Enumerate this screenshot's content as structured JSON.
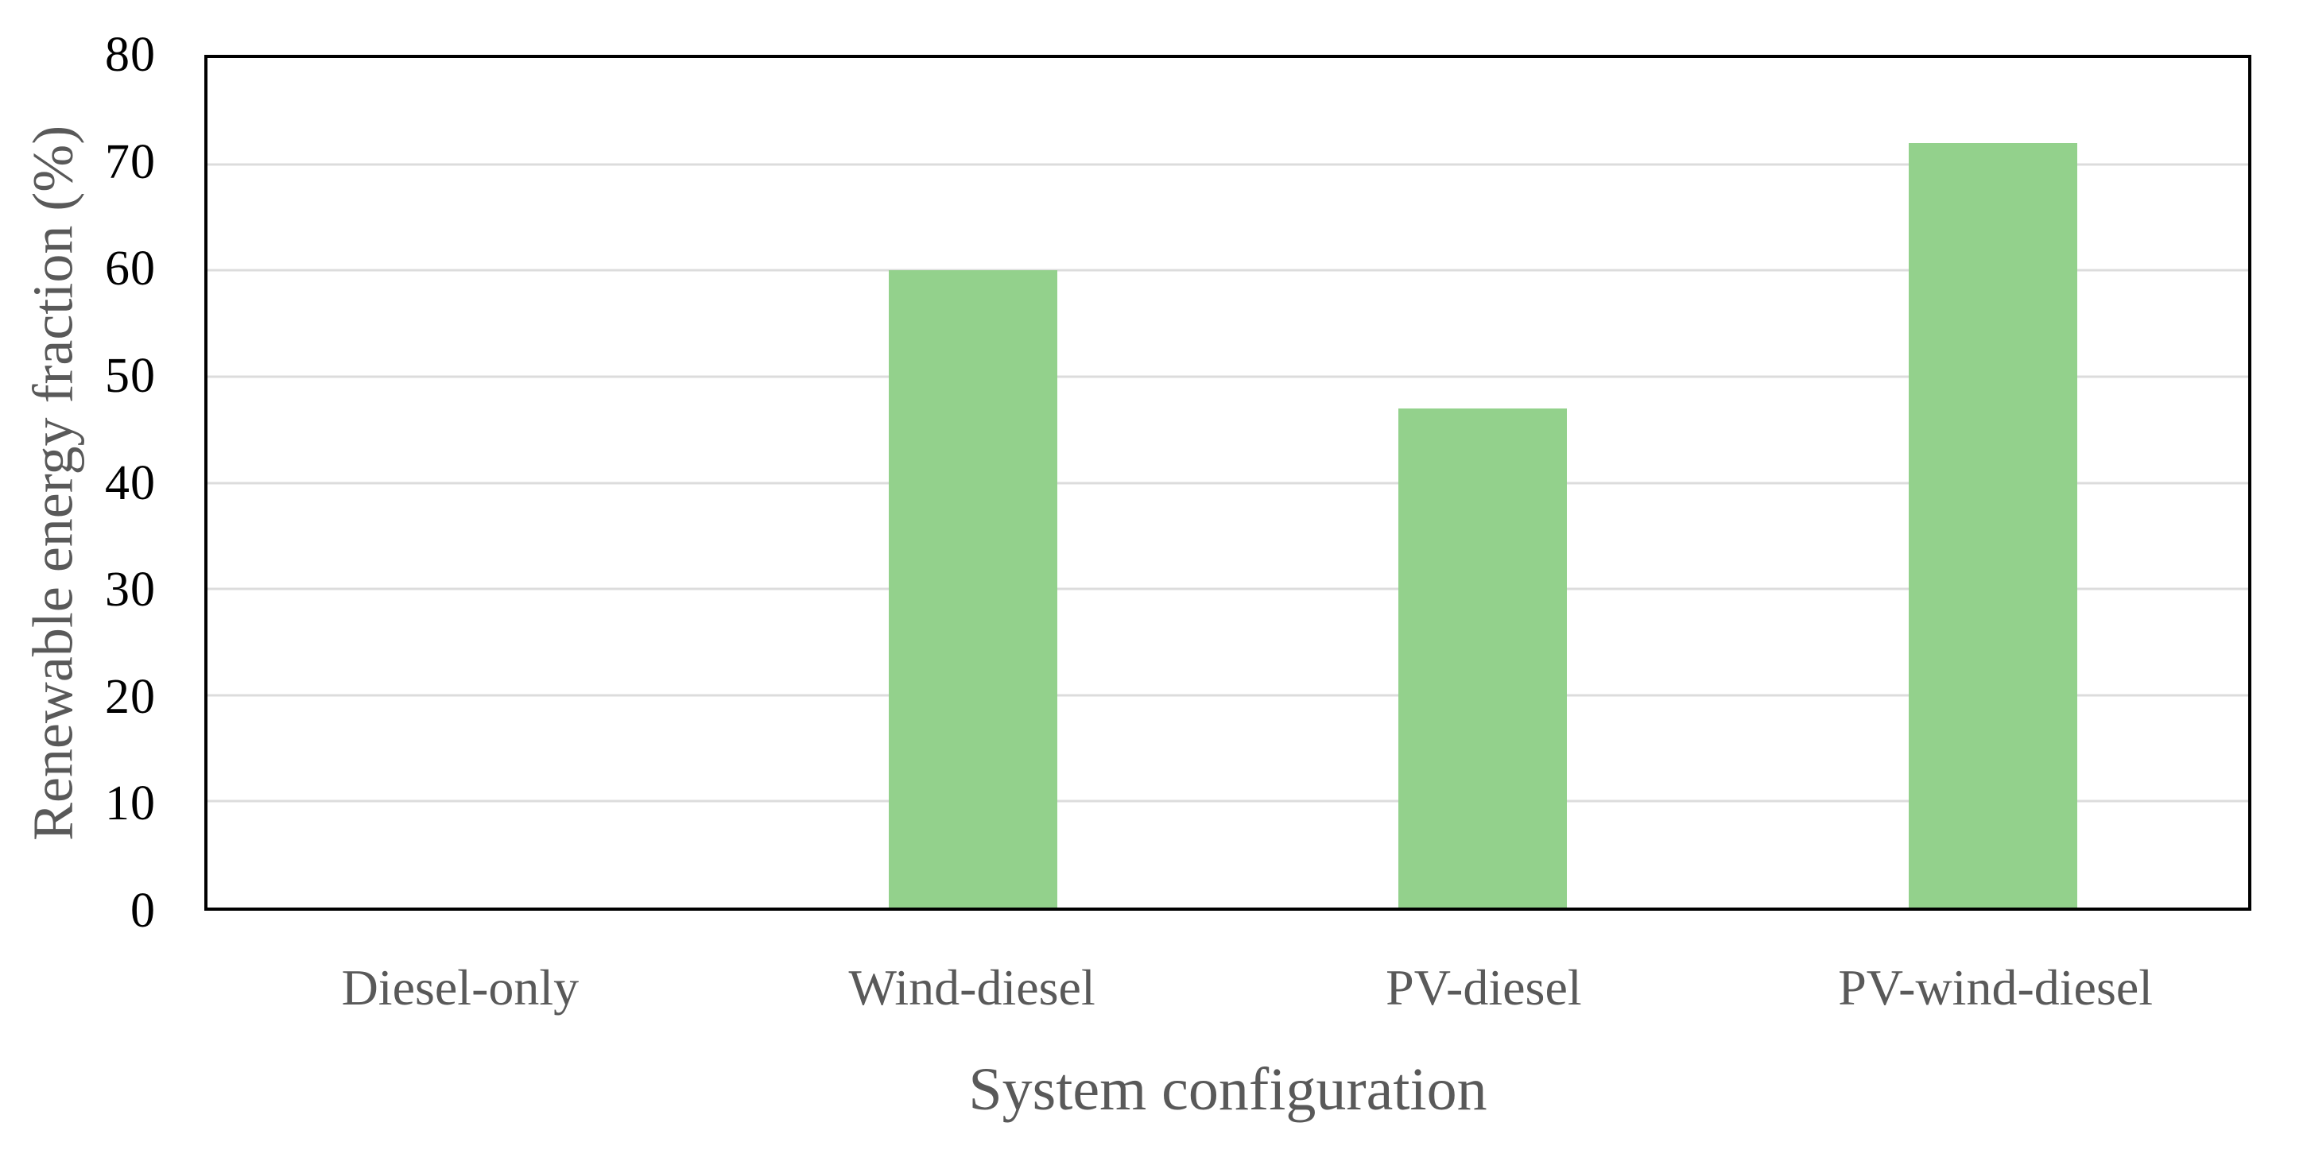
{
  "chart_data": {
    "type": "bar",
    "title": "",
    "categories": [
      "Diesel-only",
      "Wind-diesel",
      "PV-diesel",
      "PV-wind-diesel"
    ],
    "values": [
      0,
      60,
      47,
      72
    ],
    "xlabel": "System configuration",
    "ylabel": "Renewable energy fraction (%)",
    "ylim": [
      0,
      80
    ],
    "yticks": [
      0,
      10,
      20,
      30,
      40,
      50,
      60,
      70,
      80
    ],
    "grid": "horizontal",
    "legend": "none",
    "colors": {
      "bar_fill": "#93D18C",
      "gridline": "#DCDCDC",
      "plot_border": "#000000",
      "y_tick_text": "#000000",
      "axis_title_text": "#595959",
      "x_tick_text": "#595959",
      "background": "#FFFFFF"
    }
  }
}
